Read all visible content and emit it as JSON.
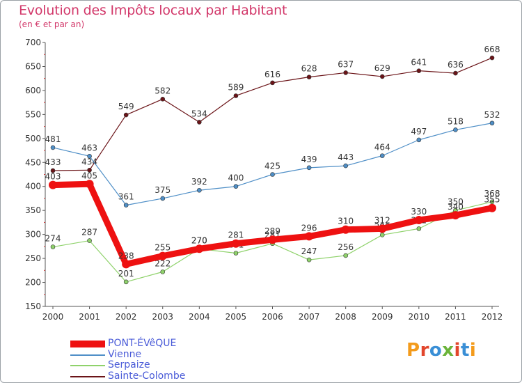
{
  "title": "Evolution des Impôts locaux par Habitant",
  "subtitle": "(en € et par an)",
  "logo": {
    "text": "Proxiti",
    "letters": [
      "P",
      "r",
      "o",
      "x",
      "i",
      "t",
      "i"
    ]
  },
  "chart_data": {
    "type": "line",
    "title": "Evolution des Impôts locaux par Habitant",
    "ylabel": "(en € et par an)",
    "xlabel": "",
    "ylim": [
      150,
      700
    ],
    "yticks": [
      150,
      200,
      250,
      300,
      350,
      400,
      450,
      500,
      550,
      600,
      650,
      700
    ],
    "grid": false,
    "legend_position": "bottom-left",
    "categories": [
      "2000",
      "2001",
      "2002",
      "2003",
      "2004",
      "2005",
      "2006",
      "2007",
      "2008",
      "2009",
      "2010",
      "2011",
      "2012"
    ],
    "series": [
      {
        "name": "Sainte-Colombe",
        "color": "#6b1418",
        "thick": false,
        "values": [
          433,
          434,
          549,
          582,
          534,
          589,
          616,
          628,
          637,
          629,
          641,
          636,
          668
        ]
      },
      {
        "name": "Vienne",
        "color": "#4f8fc7",
        "thick": false,
        "values": [
          481,
          463,
          361,
          375,
          392,
          400,
          425,
          439,
          443,
          464,
          497,
          518,
          532
        ]
      },
      {
        "name": "Serpaize",
        "color": "#8fd26b",
        "thick": false,
        "values": [
          274,
          287,
          201,
          222,
          270,
          261,
          281,
          247,
          256,
          299,
          312,
          350,
          368
        ]
      },
      {
        "name": "PONT-ÉVêQUE",
        "color": "#ee1111",
        "thick": true,
        "values": [
          403,
          405,
          238,
          255,
          270,
          281,
          289,
          296,
          310,
          312,
          330,
          340,
          355
        ]
      }
    ],
    "legend_order": [
      "PONT-ÉVêQUE",
      "Vienne",
      "Serpaize",
      "Sainte-Colombe"
    ]
  }
}
